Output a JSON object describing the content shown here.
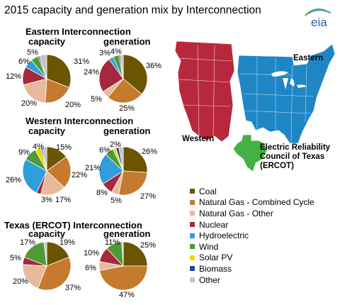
{
  "title": "2015 capacity and generation mix by Interconnection",
  "logo_text": "eia",
  "legend": [
    {
      "label": "Coal",
      "color": "#6b5404"
    },
    {
      "label": "Natural Gas - Combined Cycle",
      "color": "#c57a2e"
    },
    {
      "label": "Natural Gas - Other",
      "color": "#e8b99a"
    },
    {
      "label": "Nuclear",
      "color": "#a6283e"
    },
    {
      "label": "Hydroelectric",
      "color": "#2e9fd8"
    },
    {
      "label": "Wind",
      "color": "#4f9a34"
    },
    {
      "label": "Solar PV",
      "color": "#efd80a"
    },
    {
      "label": "Biomass",
      "color": "#1f4e8c"
    },
    {
      "label": "Other",
      "color": "#c4c4c4"
    }
  ],
  "map": {
    "western_label": "Western",
    "eastern_label": "Eastern",
    "ercot_label": "Electric Reliability Council of Texas (ERCOT)",
    "western_color": "#b8283c",
    "eastern_color": "#1f86c6",
    "ercot_color": "#45b043"
  },
  "chart_data": [
    {
      "type": "pie",
      "title": "Eastern Interconnection",
      "subtitle": "capacity",
      "slices": [
        {
          "category": "Coal",
          "value": 31,
          "label": "31%"
        },
        {
          "category": "Natural Gas - Combined Cycle",
          "value": 20,
          "label": "20%"
        },
        {
          "category": "Natural Gas - Other",
          "value": 20,
          "label": "20%"
        },
        {
          "category": "Nuclear",
          "value": 12,
          "label": "12%"
        },
        {
          "category": "Hydroelectric",
          "value": 6,
          "label": "6%"
        },
        {
          "category": "Wind",
          "value": 5,
          "label": "5%"
        },
        {
          "category": "Solar PV",
          "value": 0,
          "label": ""
        },
        {
          "category": "Biomass",
          "value": 1,
          "label": ""
        },
        {
          "category": "Other",
          "value": 5,
          "label": ""
        }
      ]
    },
    {
      "type": "pie",
      "title": "Eastern Interconnection",
      "subtitle": "generation",
      "slices": [
        {
          "category": "Coal",
          "value": 36,
          "label": "36%"
        },
        {
          "category": "Natural Gas - Combined Cycle",
          "value": 25,
          "label": "25%"
        },
        {
          "category": "Natural Gas - Other",
          "value": 5,
          "label": "5%"
        },
        {
          "category": "Nuclear",
          "value": 24,
          "label": "24%"
        },
        {
          "category": "Hydroelectric",
          "value": 3,
          "label": "3%"
        },
        {
          "category": "Wind",
          "value": 4,
          "label": "4%"
        },
        {
          "category": "Solar PV",
          "value": 0,
          "label": ""
        },
        {
          "category": "Biomass",
          "value": 1,
          "label": ""
        },
        {
          "category": "Other",
          "value": 2,
          "label": ""
        }
      ]
    },
    {
      "type": "pie",
      "title": "Western Interconnection",
      "subtitle": "capacity",
      "slices": [
        {
          "category": "Coal",
          "value": 15,
          "label": "15%"
        },
        {
          "category": "Natural Gas - Combined Cycle",
          "value": 22,
          "label": "22%"
        },
        {
          "category": "Natural Gas - Other",
          "value": 17,
          "label": "17%"
        },
        {
          "category": "Nuclear",
          "value": 3,
          "label": "3%"
        },
        {
          "category": "Hydroelectric",
          "value": 26,
          "label": "26%"
        },
        {
          "category": "Wind",
          "value": 9,
          "label": "9%"
        },
        {
          "category": "Solar PV",
          "value": 4,
          "label": "4%"
        },
        {
          "category": "Biomass",
          "value": 1,
          "label": ""
        },
        {
          "category": "Other",
          "value": 3,
          "label": ""
        }
      ]
    },
    {
      "type": "pie",
      "title": "Western Interconnection",
      "subtitle": "generation",
      "slices": [
        {
          "category": "Coal",
          "value": 26,
          "label": "26%"
        },
        {
          "category": "Natural Gas - Combined Cycle",
          "value": 27,
          "label": "27%"
        },
        {
          "category": "Natural Gas - Other",
          "value": 5,
          "label": "5%"
        },
        {
          "category": "Nuclear",
          "value": 8,
          "label": "8%"
        },
        {
          "category": "Hydroelectric",
          "value": 21,
          "label": "21%"
        },
        {
          "category": "Wind",
          "value": 6,
          "label": "6%"
        },
        {
          "category": "Solar PV",
          "value": 2,
          "label": "2%"
        },
        {
          "category": "Biomass",
          "value": 2,
          "label": ""
        },
        {
          "category": "Other",
          "value": 3,
          "label": ""
        }
      ]
    },
    {
      "type": "pie",
      "title": "Texas (ERCOT) Interconnection",
      "subtitle": "capacity",
      "slices": [
        {
          "category": "Coal",
          "value": 19,
          "label": "19%"
        },
        {
          "category": "Natural Gas - Combined Cycle",
          "value": 37,
          "label": "37%"
        },
        {
          "category": "Natural Gas - Other",
          "value": 20,
          "label": "20%"
        },
        {
          "category": "Nuclear",
          "value": 5,
          "label": "5%"
        },
        {
          "category": "Hydroelectric",
          "value": 0,
          "label": ""
        },
        {
          "category": "Wind",
          "value": 17,
          "label": "17%"
        },
        {
          "category": "Solar PV",
          "value": 0,
          "label": ""
        },
        {
          "category": "Biomass",
          "value": 0,
          "label": ""
        },
        {
          "category": "Other",
          "value": 2,
          "label": ""
        }
      ]
    },
    {
      "type": "pie",
      "title": "Texas (ERCOT) Interconnection",
      "subtitle": "generation",
      "slices": [
        {
          "category": "Coal",
          "value": 25,
          "label": "25%"
        },
        {
          "category": "Natural Gas - Combined Cycle",
          "value": 47,
          "label": "47%"
        },
        {
          "category": "Natural Gas - Other",
          "value": 6,
          "label": "6%"
        },
        {
          "category": "Nuclear",
          "value": 10,
          "label": "10%"
        },
        {
          "category": "Hydroelectric",
          "value": 0,
          "label": ""
        },
        {
          "category": "Wind",
          "value": 11,
          "label": "11%"
        },
        {
          "category": "Solar PV",
          "value": 0,
          "label": ""
        },
        {
          "category": "Biomass",
          "value": 0,
          "label": ""
        },
        {
          "category": "Other",
          "value": 1,
          "label": ""
        }
      ]
    }
  ]
}
